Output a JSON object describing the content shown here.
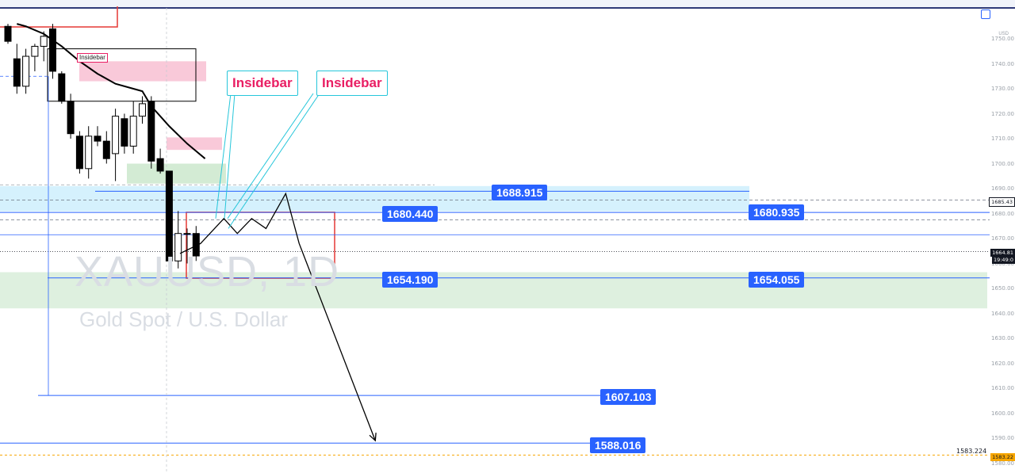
{
  "symbol": "XAUUSD, 1D",
  "description": "Gold Spot / U.S. Dollar",
  "currency": "USD",
  "callouts": [
    "Insidebar",
    "Insidebar"
  ],
  "small_tag": "Insidebar",
  "price_axis": {
    "ticks": [
      "1750.00",
      "1740.00",
      "1730.00",
      "1720.00",
      "1710.00",
      "1700.00",
      "1690.00",
      "1680.00",
      "1670.00",
      "1660.00",
      "1650.00",
      "1640.00",
      "1630.00",
      "1620.00",
      "1610.00",
      "1600.00",
      "1590.00",
      "1580.00"
    ],
    "current_price": "1664.81",
    "countdown": "19:49:0",
    "marker_price": "1685.43",
    "alert_price": "1583.22"
  },
  "level_labels": {
    "l1688": "1688.915",
    "l1680a": "1680.440",
    "l1680b": "1680.935",
    "l1654a": "1654.190",
    "l1654b": "1654.055",
    "l1607": "1607.103",
    "l1588": "1588.016",
    "l1583": "1583.224"
  },
  "colors": {
    "level_box": "#2962ff",
    "callout_text": "#e91e63",
    "callout_border": "#26c6da",
    "support_zone": "#c8e6c9",
    "resistance_zone": "#b3e5fc",
    "supply_zone": "#f8bbd0",
    "bear_candle": "#000000",
    "bull_candle": "#ffffff"
  },
  "chart_data": {
    "type": "candlestick",
    "title": "XAUUSD, 1D",
    "subtitle": "Gold Spot / U.S. Dollar",
    "ylim": [
      1577,
      1756
    ],
    "candles": [
      {
        "o": 1755,
        "h": 1756,
        "l": 1748,
        "c": 1749
      },
      {
        "o": 1742,
        "h": 1748,
        "l": 1728,
        "c": 1731
      },
      {
        "o": 1731,
        "h": 1746,
        "l": 1728,
        "c": 1743
      },
      {
        "o": 1743,
        "h": 1748,
        "l": 1737,
        "c": 1747
      },
      {
        "o": 1747,
        "h": 1753,
        "l": 1741,
        "c": 1751
      },
      {
        "o": 1754,
        "h": 1756,
        "l": 1734,
        "c": 1737
      },
      {
        "o": 1736,
        "h": 1737,
        "l": 1724,
        "c": 1725
      },
      {
        "o": 1725,
        "h": 1728,
        "l": 1710,
        "c": 1712
      },
      {
        "o": 1711,
        "h": 1713,
        "l": 1696,
        "c": 1698
      },
      {
        "o": 1698,
        "h": 1715,
        "l": 1694,
        "c": 1711
      },
      {
        "o": 1711,
        "h": 1715,
        "l": 1707,
        "c": 1709
      },
      {
        "o": 1709,
        "h": 1713,
        "l": 1700,
        "c": 1702
      },
      {
        "o": 1704,
        "h": 1722,
        "l": 1693,
        "c": 1719
      },
      {
        "o": 1718,
        "h": 1720,
        "l": 1704,
        "c": 1707
      },
      {
        "o": 1707,
        "h": 1725,
        "l": 1704,
        "c": 1719
      },
      {
        "o": 1719,
        "h": 1727,
        "l": 1716,
        "c": 1724
      },
      {
        "o": 1725,
        "h": 1727,
        "l": 1698,
        "c": 1701
      },
      {
        "o": 1702,
        "h": 1706,
        "l": 1696,
        "c": 1697
      },
      {
        "o": 1697,
        "h": 1697,
        "l": 1659,
        "c": 1661
      },
      {
        "o": 1661,
        "h": 1681,
        "l": 1658,
        "c": 1672
      },
      {
        "o": 1672,
        "h": 1674,
        "l": 1660,
        "c": 1672
      },
      {
        "o": 1672,
        "h": 1675,
        "l": 1661,
        "c": 1663
      }
    ],
    "moving_average": [
      [
        1,
        1756
      ],
      [
        2,
        1755
      ],
      [
        4,
        1752
      ],
      [
        6,
        1747
      ],
      [
        8,
        1741
      ],
      [
        10,
        1736
      ],
      [
        12,
        1732
      ],
      [
        14,
        1730
      ],
      [
        15,
        1729
      ],
      [
        16,
        1723
      ],
      [
        18,
        1715
      ],
      [
        20,
        1708
      ],
      [
        22,
        1702
      ]
    ],
    "levels": [
      1688.915,
      1680.44,
      1680.935,
      1654.19,
      1654.055,
      1607.103,
      1588.016,
      1583.224
    ],
    "projection": [
      [
        19.2,
        1664
      ],
      [
        21.5,
        1668
      ],
      [
        24.1,
        1678
      ],
      [
        25.6,
        1672
      ],
      [
        27.2,
        1678
      ],
      [
        28.8,
        1674
      ],
      [
        31,
        1688
      ],
      [
        32.5,
        1668
      ],
      [
        41,
        1589
      ]
    ],
    "annotations": [
      "Insidebar",
      "Insidebar"
    ]
  }
}
